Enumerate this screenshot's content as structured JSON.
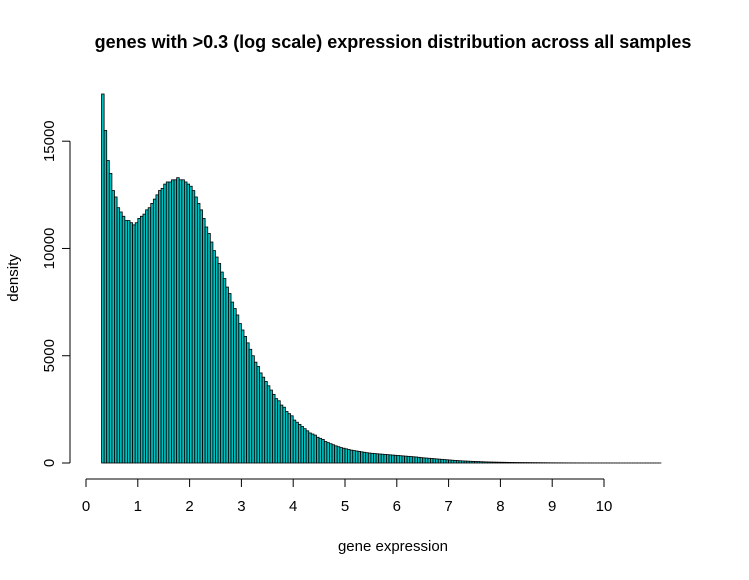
{
  "chart_data": {
    "type": "bar",
    "title": "genes with >0.3 (log scale) expression distribution across all samples",
    "xlabel": "gene expression",
    "ylabel": "density",
    "xlim": [
      0,
      11.5
    ],
    "ylim": [
      0,
      17200
    ],
    "x_ticks": [
      "0",
      "1",
      "2",
      "3",
      "4",
      "5",
      "6",
      "7",
      "8",
      "9",
      "10"
    ],
    "y_ticks": [
      "0",
      "5000",
      "10000",
      "15000"
    ],
    "grid": false,
    "bin_start": 0.3,
    "bin_width": 0.05,
    "values": [
      17200,
      15500,
      14100,
      13500,
      12700,
      12400,
      11900,
      11700,
      11500,
      11300,
      11300,
      11200,
      11100,
      11200,
      11400,
      11500,
      11600,
      11800,
      11900,
      12100,
      12300,
      12500,
      12700,
      12800,
      13000,
      13100,
      13100,
      13200,
      13200,
      13300,
      13200,
      13200,
      13100,
      13000,
      12900,
      12700,
      12400,
      12100,
      11800,
      11400,
      11000,
      10700,
      10300,
      9900,
      9600,
      9300,
      8900,
      8600,
      8200,
      7900,
      7500,
      7200,
      6900,
      6500,
      6200,
      5900,
      5600,
      5300,
      5000,
      4700,
      4500,
      4200,
      4000,
      3800,
      3600,
      3400,
      3200,
      3000,
      2900,
      2700,
      2600,
      2400,
      2300,
      2200,
      2000,
      1900,
      1800,
      1700,
      1600,
      1500,
      1400,
      1350,
      1300,
      1200,
      1150,
      1100,
      1000,
      950,
      900,
      850,
      800,
      760,
      720,
      690,
      660,
      630,
      600,
      580,
      560,
      540,
      520,
      500,
      480,
      465,
      450,
      440,
      430,
      420,
      410,
      400,
      390,
      380,
      370,
      360,
      350,
      340,
      330,
      320,
      310,
      300,
      290,
      280,
      265,
      250,
      240,
      230,
      220,
      210,
      200,
      190,
      180,
      170,
      160,
      150,
      140,
      130,
      120,
      112,
      105,
      98,
      92,
      86,
      80,
      75,
      70,
      65,
      60,
      56,
      52,
      48,
      45,
      42,
      39,
      36,
      34,
      32,
      30,
      28,
      26,
      24,
      22,
      21,
      20,
      19,
      18,
      17,
      16,
      15,
      14,
      13,
      12,
      11,
      10,
      9,
      8,
      8,
      7,
      7,
      6,
      6,
      5,
      5,
      5,
      4,
      4,
      4,
      3,
      3,
      3,
      3,
      2,
      2,
      2,
      2,
      2,
      2,
      1,
      1,
      1,
      1,
      1,
      1,
      1,
      1,
      1,
      1,
      1,
      1,
      1,
      1,
      1,
      1,
      1,
      1,
      1,
      1
    ],
    "colors": {
      "bar_fill": "#00BFBF",
      "bar_stroke": "#000000"
    }
  }
}
